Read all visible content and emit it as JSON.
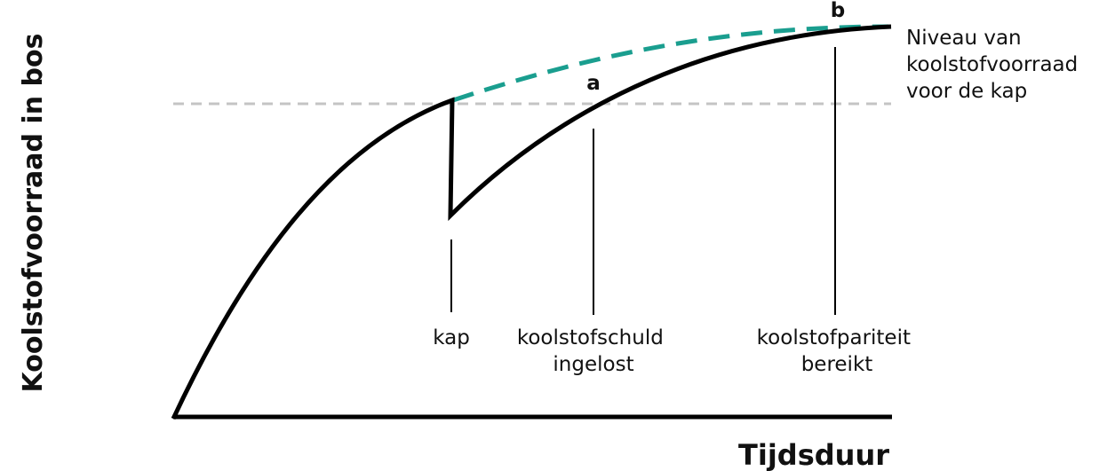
{
  "y_axis_label": "Koolstofvoorraad in bos",
  "x_axis_label": "Tijdsduur",
  "level_label": [
    "Niveau van",
    "koolstofvoorraad",
    "voor de kap"
  ],
  "markers": [
    {
      "label": [
        "kap"
      ]
    },
    {
      "label": [
        "koolstofschuld",
        "ingelost"
      ],
      "point": "a"
    },
    {
      "label": [
        "koolstofpariteit",
        "bereikt"
      ],
      "point": "b"
    }
  ]
}
